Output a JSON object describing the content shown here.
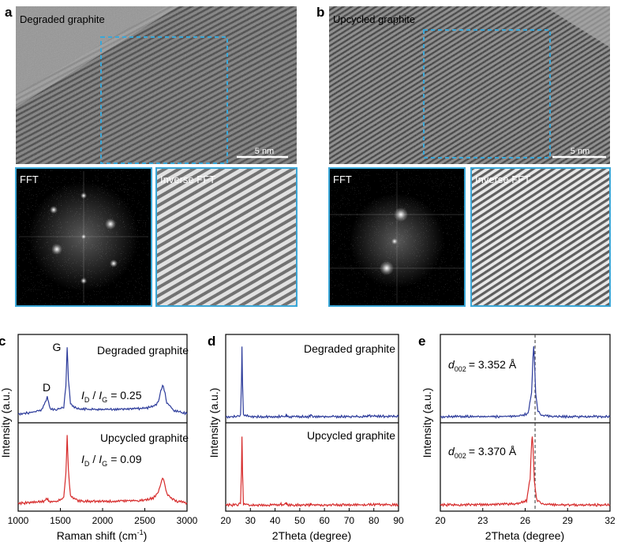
{
  "panels": {
    "a": {
      "letter": "a",
      "title": "Degraded graphite",
      "scale_bar": "5 nm",
      "fft_label": "FFT",
      "ifft_label": "Inverse FFT"
    },
    "b": {
      "letter": "b",
      "title": "Upcycled graphite",
      "scale_bar": "5 nm",
      "fft_label": "FFT",
      "ifft_label": "Inverse FFT"
    }
  },
  "colors": {
    "blue": "#2b3a9a",
    "red": "#d62a2a",
    "roi": "#3aa7d8"
  },
  "chart_data": [
    {
      "panel": "c",
      "type": "line",
      "xlabel": "Raman shift (cm",
      "xlabel_sup": "-1",
      "xlabel_end": ")",
      "ylabel": "Intensity (a.u.)",
      "xlim": [
        1000,
        3000
      ],
      "xticks": [
        "1000",
        "1500",
        "2000",
        "2500",
        "3000"
      ],
      "series": [
        {
          "name": "Degraded graphite",
          "color": "#2b3a9a",
          "x": [
            1000,
            1100,
            1200,
            1280,
            1320,
            1345,
            1360,
            1380,
            1450,
            1540,
            1565,
            1580,
            1595,
            1620,
            1700,
            1900,
            2100,
            2300,
            2400,
            2500,
            2600,
            2660,
            2690,
            2710,
            2730,
            2760,
            2850,
            3000
          ],
          "y": [
            0.06,
            0.07,
            0.09,
            0.12,
            0.22,
            0.3,
            0.22,
            0.13,
            0.12,
            0.15,
            0.45,
            1.0,
            0.55,
            0.2,
            0.13,
            0.12,
            0.12,
            0.13,
            0.13,
            0.14,
            0.16,
            0.22,
            0.38,
            0.47,
            0.4,
            0.22,
            0.1,
            0.06
          ]
        },
        {
          "name": "Upcycled graphite",
          "color": "#d62a2a",
          "x": [
            1000,
            1100,
            1200,
            1300,
            1345,
            1360,
            1380,
            1450,
            1540,
            1565,
            1580,
            1595,
            1620,
            1700,
            1900,
            2100,
            2300,
            2400,
            2500,
            2600,
            2660,
            2690,
            2710,
            2730,
            2760,
            2850,
            3000
          ],
          "y": [
            0.04,
            0.05,
            0.06,
            0.07,
            0.11,
            0.08,
            0.07,
            0.07,
            0.12,
            0.45,
            1.0,
            0.5,
            0.15,
            0.08,
            0.07,
            0.07,
            0.08,
            0.08,
            0.09,
            0.12,
            0.2,
            0.33,
            0.4,
            0.34,
            0.18,
            0.08,
            0.05
          ]
        }
      ],
      "annotations": {
        "g_peak": "G",
        "d_peak": "D",
        "top_ratio_value": "= 0.25",
        "bottom_ratio_value": "= 0.09",
        "i_letter": "I",
        "d_sub": "D",
        "g_sub": "G",
        "slash": "/"
      }
    },
    {
      "panel": "d",
      "type": "line",
      "xlabel": "2Theta (degree)",
      "ylabel": "Intensity (a.u.)",
      "xlim": [
        20,
        90
      ],
      "xticks": [
        "20",
        "30",
        "40",
        "50",
        "60",
        "70",
        "80",
        "90"
      ],
      "series": [
        {
          "name": "Degraded graphite",
          "color": "#2b3a9a",
          "x": [
            20,
            25,
            26.0,
            26.4,
            26.6,
            26.8,
            27.2,
            30,
            42,
            42.4,
            43,
            44.3,
            44.6,
            45,
            54.2,
            54.6,
            55,
            77.3,
            77.6,
            90
          ],
          "y": [
            0.02,
            0.02,
            0.05,
            0.5,
            1.0,
            0.5,
            0.04,
            0.02,
            0.02,
            0.03,
            0.02,
            0.03,
            0.04,
            0.02,
            0.02,
            0.04,
            0.02,
            0.02,
            0.03,
            0.02
          ]
        },
        {
          "name": "Upcycled graphite",
          "color": "#d62a2a",
          "x": [
            20,
            25,
            26.0,
            26.4,
            26.6,
            26.8,
            27.2,
            30,
            42,
            42.4,
            43,
            44.3,
            44.6,
            45,
            54.2,
            54.6,
            55,
            77.3,
            77.6,
            90
          ],
          "y": [
            0.02,
            0.02,
            0.05,
            0.5,
            1.0,
            0.5,
            0.04,
            0.02,
            0.02,
            0.03,
            0.02,
            0.03,
            0.05,
            0.02,
            0.02,
            0.05,
            0.02,
            0.02,
            0.03,
            0.02
          ]
        }
      ]
    },
    {
      "panel": "e",
      "type": "line",
      "xlabel": "2Theta (degree)",
      "ylabel": "Intensity (a.u.)",
      "xlim": [
        20,
        32
      ],
      "xticks": [
        "20",
        "23",
        "26",
        "29",
        "32"
      ],
      "reference_line_x": 26.7,
      "series": [
        {
          "name": "Degraded graphite",
          "color": "#2b3a9a",
          "x": [
            20,
            24,
            25.5,
            26.2,
            26.45,
            26.55,
            26.6,
            26.65,
            26.75,
            26.9,
            27.2,
            28,
            32
          ],
          "y": [
            0.02,
            0.02,
            0.03,
            0.06,
            0.35,
            0.85,
            1.0,
            0.85,
            0.35,
            0.1,
            0.04,
            0.02,
            0.02
          ]
        },
        {
          "name": "Upcycled graphite",
          "color": "#d62a2a",
          "x": [
            20,
            24,
            25.5,
            26.1,
            26.35,
            26.45,
            26.5,
            26.55,
            26.65,
            26.8,
            27.1,
            28,
            32
          ],
          "y": [
            0.02,
            0.03,
            0.04,
            0.08,
            0.4,
            0.88,
            1.0,
            0.85,
            0.35,
            0.1,
            0.04,
            0.02,
            0.02
          ]
        }
      ],
      "annotations": {
        "d_letter": "d",
        "d_sub": "002",
        "top_value": "= 3.352 Å",
        "bottom_value": "= 3.370 Å"
      }
    }
  ]
}
